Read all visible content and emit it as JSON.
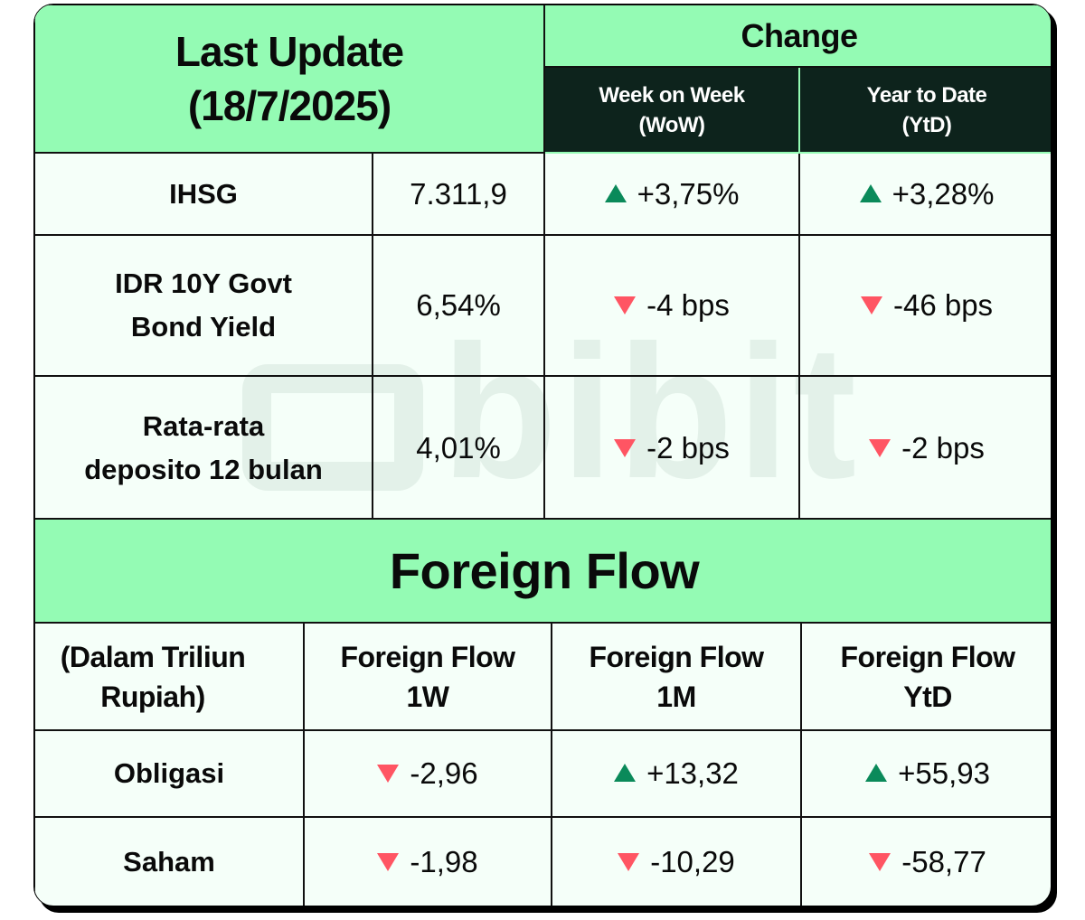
{
  "header": {
    "last_update_line1": "Last Update",
    "last_update_line2": "(18/7/2025)",
    "change": "Change",
    "wow_line1": "Week on Week",
    "wow_line2": "(WoW)",
    "ytd_line1": "Year to Date",
    "ytd_line2": "(YtD)"
  },
  "indicators": [
    {
      "label_lines": [
        "IHSG"
      ],
      "value": "7.311,9",
      "wow": {
        "dir": "up",
        "text": "+3,75%"
      },
      "ytd": {
        "dir": "up",
        "text": "+3,28%"
      }
    },
    {
      "label_lines": [
        "IDR 10Y Govt",
        "Bond Yield"
      ],
      "value": "6,54%",
      "wow": {
        "dir": "down",
        "text": "-4 bps"
      },
      "ytd": {
        "dir": "down",
        "text": "-46 bps"
      }
    },
    {
      "label_lines": [
        "Rata-rata",
        "deposito 12 bulan"
      ],
      "value": "4,01%",
      "wow": {
        "dir": "down",
        "text": "-2 bps"
      },
      "ytd": {
        "dir": "down",
        "text": "-2 bps"
      }
    }
  ],
  "foreign_flow": {
    "title": "Foreign Flow",
    "unit_lines": [
      "(Dalam Triliun",
      "Rupiah)"
    ],
    "columns": [
      {
        "line1": "Foreign Flow",
        "line2": "1W"
      },
      {
        "line1": "Foreign Flow",
        "line2": "1M"
      },
      {
        "line1": "Foreign Flow",
        "line2": "YtD"
      }
    ],
    "rows": [
      {
        "label": "Obligasi",
        "cells": [
          {
            "dir": "down",
            "text": "-2,96"
          },
          {
            "dir": "up",
            "text": "+13,32"
          },
          {
            "dir": "up",
            "text": "+55,93"
          }
        ]
      },
      {
        "label": "Saham",
        "cells": [
          {
            "dir": "down",
            "text": "-1,98"
          },
          {
            "dir": "down",
            "text": "-10,29"
          },
          {
            "dir": "down",
            "text": "-58,77"
          }
        ]
      }
    ]
  },
  "watermark_logo": "bibit",
  "colors": {
    "header_green": "#94fbb4",
    "header_dark": "#0d231c",
    "body": "#f5fff9",
    "up": "#0a8a5a",
    "down": "#ff5563"
  }
}
